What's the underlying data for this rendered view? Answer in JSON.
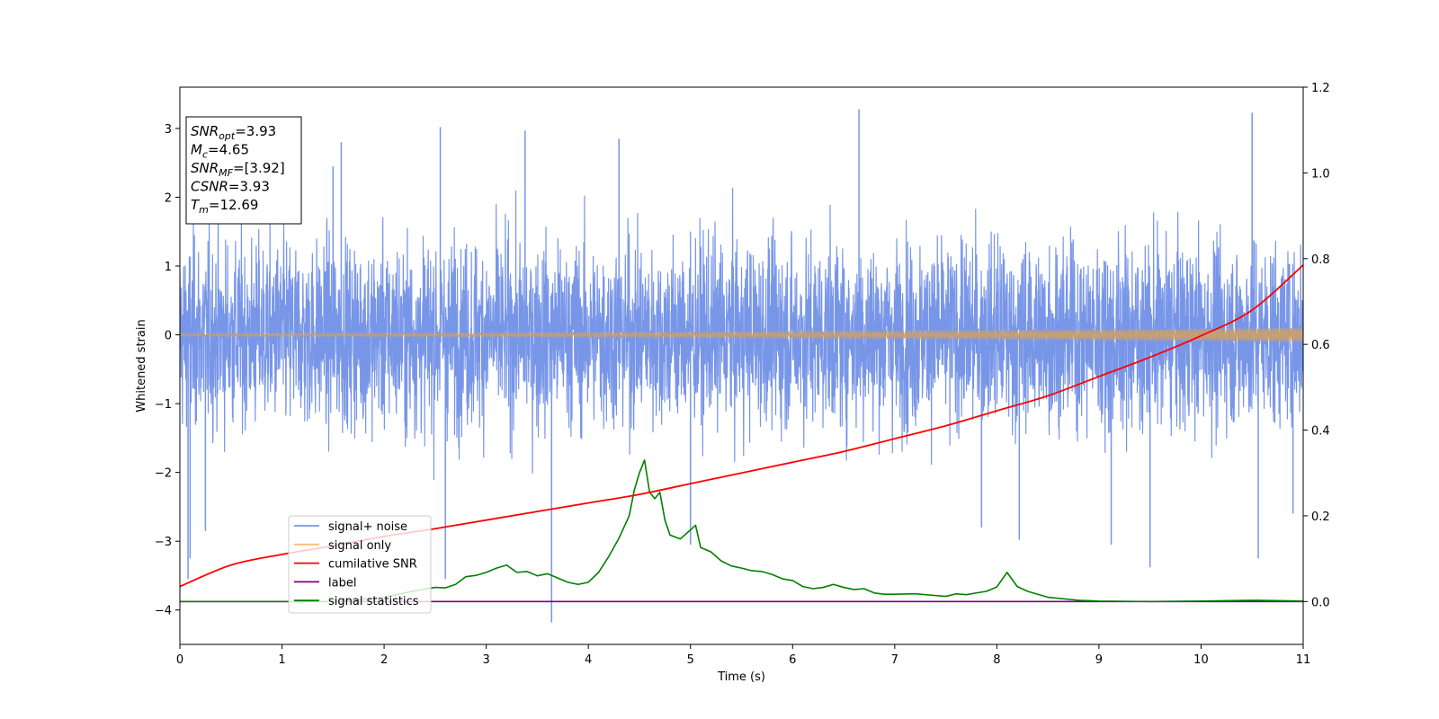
{
  "chart_data": {
    "type": "line",
    "xlabel": "Time (s)",
    "ylabel": "Whitened strain",
    "xlim": [
      0,
      11
    ],
    "ylim": [
      -4.5,
      3.6
    ],
    "y2lim": [
      -0.1,
      1.2
    ],
    "x_ticks": [
      0,
      1,
      2,
      3,
      4,
      5,
      6,
      7,
      8,
      9,
      10,
      11
    ],
    "y_ticks": [
      -4,
      -3,
      -2,
      -1,
      0,
      1,
      2,
      3
    ],
    "y_tick_labels": [
      "−4",
      "−3",
      "−2",
      "−1",
      "0",
      "1",
      "2",
      "3"
    ],
    "y2_ticks": [
      0.0,
      0.2,
      0.4,
      0.6,
      0.8,
      1.0,
      1.2
    ],
    "y2_tick_labels": [
      "0.0",
      "0.2",
      "0.4",
      "0.6",
      "0.8",
      "1.0",
      "1.2"
    ],
    "grid": false,
    "legend_position": "lower-left",
    "annotation": {
      "lines": [
        {
          "base": "SNR",
          "sub": "opt",
          "value": "=3.93"
        },
        {
          "base": "M",
          "sub": "c",
          "value": "=4.65"
        },
        {
          "base": "SNR",
          "sub": "MF",
          "value": "=[3.92]"
        },
        {
          "base": "CSNR",
          "sub": "",
          "value": "=3.93"
        },
        {
          "base": "T",
          "sub": "m",
          "value": "=12.69"
        }
      ]
    },
    "series": [
      {
        "name": "signal+ noise",
        "axis": "left",
        "color": "#7896e8",
        "style": "dense noise",
        "range": [
          -4.2,
          3.3
        ],
        "peaks": [
          {
            "x": 0.08,
            "y": -3.55
          },
          {
            "x": 0.1,
            "y": -3.25
          },
          {
            "x": 0.25,
            "y": -2.85
          },
          {
            "x": 1.5,
            "y": 2.45
          },
          {
            "x": 1.58,
            "y": 2.8
          },
          {
            "x": 2.55,
            "y": 3.02
          },
          {
            "x": 2.6,
            "y": -3.55
          },
          {
            "x": 3.38,
            "y": 2.97
          },
          {
            "x": 3.64,
            "y": -4.18
          },
          {
            "x": 4.3,
            "y": 2.85
          },
          {
            "x": 5.0,
            "y": -3.05
          },
          {
            "x": 6.65,
            "y": 3.28
          },
          {
            "x": 7.85,
            "y": -2.8
          },
          {
            "x": 8.22,
            "y": -2.98
          },
          {
            "x": 9.12,
            "y": -3.05
          },
          {
            "x": 9.5,
            "y": -3.38
          },
          {
            "x": 10.5,
            "y": 3.23
          },
          {
            "x": 10.56,
            "y": -3.25
          },
          {
            "x": 10.9,
            "y": -2.6
          }
        ]
      },
      {
        "name": "signal only",
        "axis": "left",
        "color": "#ffbb78",
        "style": "chirp",
        "amplitude_start": 0.02,
        "amplitude_end": 0.1
      },
      {
        "name": "cumilative SNR",
        "axis": "right",
        "color": "#ff0000",
        "x": [
          0,
          0.5,
          1,
          1.5,
          2,
          2.5,
          3,
          3.5,
          4,
          4.5,
          5,
          5.5,
          6,
          6.5,
          7,
          7.5,
          8,
          8.5,
          9,
          9.5,
          10,
          10.5,
          11
        ],
        "y": [
          0.035,
          0.085,
          0.11,
          0.13,
          0.152,
          0.17,
          0.19,
          0.21,
          0.23,
          0.25,
          0.275,
          0.3,
          0.325,
          0.35,
          0.38,
          0.41,
          0.445,
          0.48,
          0.525,
          0.57,
          0.62,
          0.68,
          0.785
        ]
      },
      {
        "name": "label",
        "axis": "right",
        "color": "#800080",
        "x": [
          0,
          11
        ],
        "y": [
          0.0,
          0.0
        ]
      },
      {
        "name": "signal statistics",
        "axis": "right",
        "color": "#008000",
        "x": [
          0,
          1.5,
          2.0,
          2.3,
          2.5,
          2.6,
          2.7,
          2.8,
          2.9,
          3.0,
          3.1,
          3.2,
          3.3,
          3.4,
          3.5,
          3.6,
          3.7,
          3.8,
          3.9,
          4.0,
          4.1,
          4.2,
          4.3,
          4.4,
          4.45,
          4.5,
          4.55,
          4.6,
          4.65,
          4.7,
          4.75,
          4.8,
          4.9,
          5.0,
          5.05,
          5.1,
          5.2,
          5.3,
          5.4,
          5.5,
          5.6,
          5.7,
          5.8,
          5.9,
          6.0,
          6.1,
          6.2,
          6.3,
          6.4,
          6.5,
          6.6,
          6.7,
          6.8,
          6.9,
          7.0,
          7.2,
          7.4,
          7.5,
          7.6,
          7.7,
          7.8,
          7.9,
          8.0,
          8.1,
          8.2,
          8.3,
          8.5,
          8.8,
          9.0,
          9.5,
          10.0,
          10.5,
          11.0
        ],
        "y": [
          0.0,
          0.0,
          0.01,
          0.025,
          0.033,
          0.032,
          0.04,
          0.058,
          0.061,
          0.068,
          0.078,
          0.085,
          0.068,
          0.07,
          0.06,
          0.065,
          0.055,
          0.045,
          0.04,
          0.045,
          0.068,
          0.105,
          0.148,
          0.2,
          0.26,
          0.3,
          0.33,
          0.255,
          0.24,
          0.255,
          0.19,
          0.155,
          0.146,
          0.167,
          0.178,
          0.126,
          0.116,
          0.095,
          0.083,
          0.078,
          0.072,
          0.07,
          0.063,
          0.053,
          0.049,
          0.035,
          0.03,
          0.033,
          0.04,
          0.033,
          0.028,
          0.03,
          0.02,
          0.017,
          0.017,
          0.018,
          0.014,
          0.012,
          0.018,
          0.016,
          0.02,
          0.024,
          0.034,
          0.068,
          0.035,
          0.024,
          0.01,
          0.003,
          0.001,
          0.0,
          0.001,
          0.003,
          0.001
        ]
      }
    ]
  }
}
